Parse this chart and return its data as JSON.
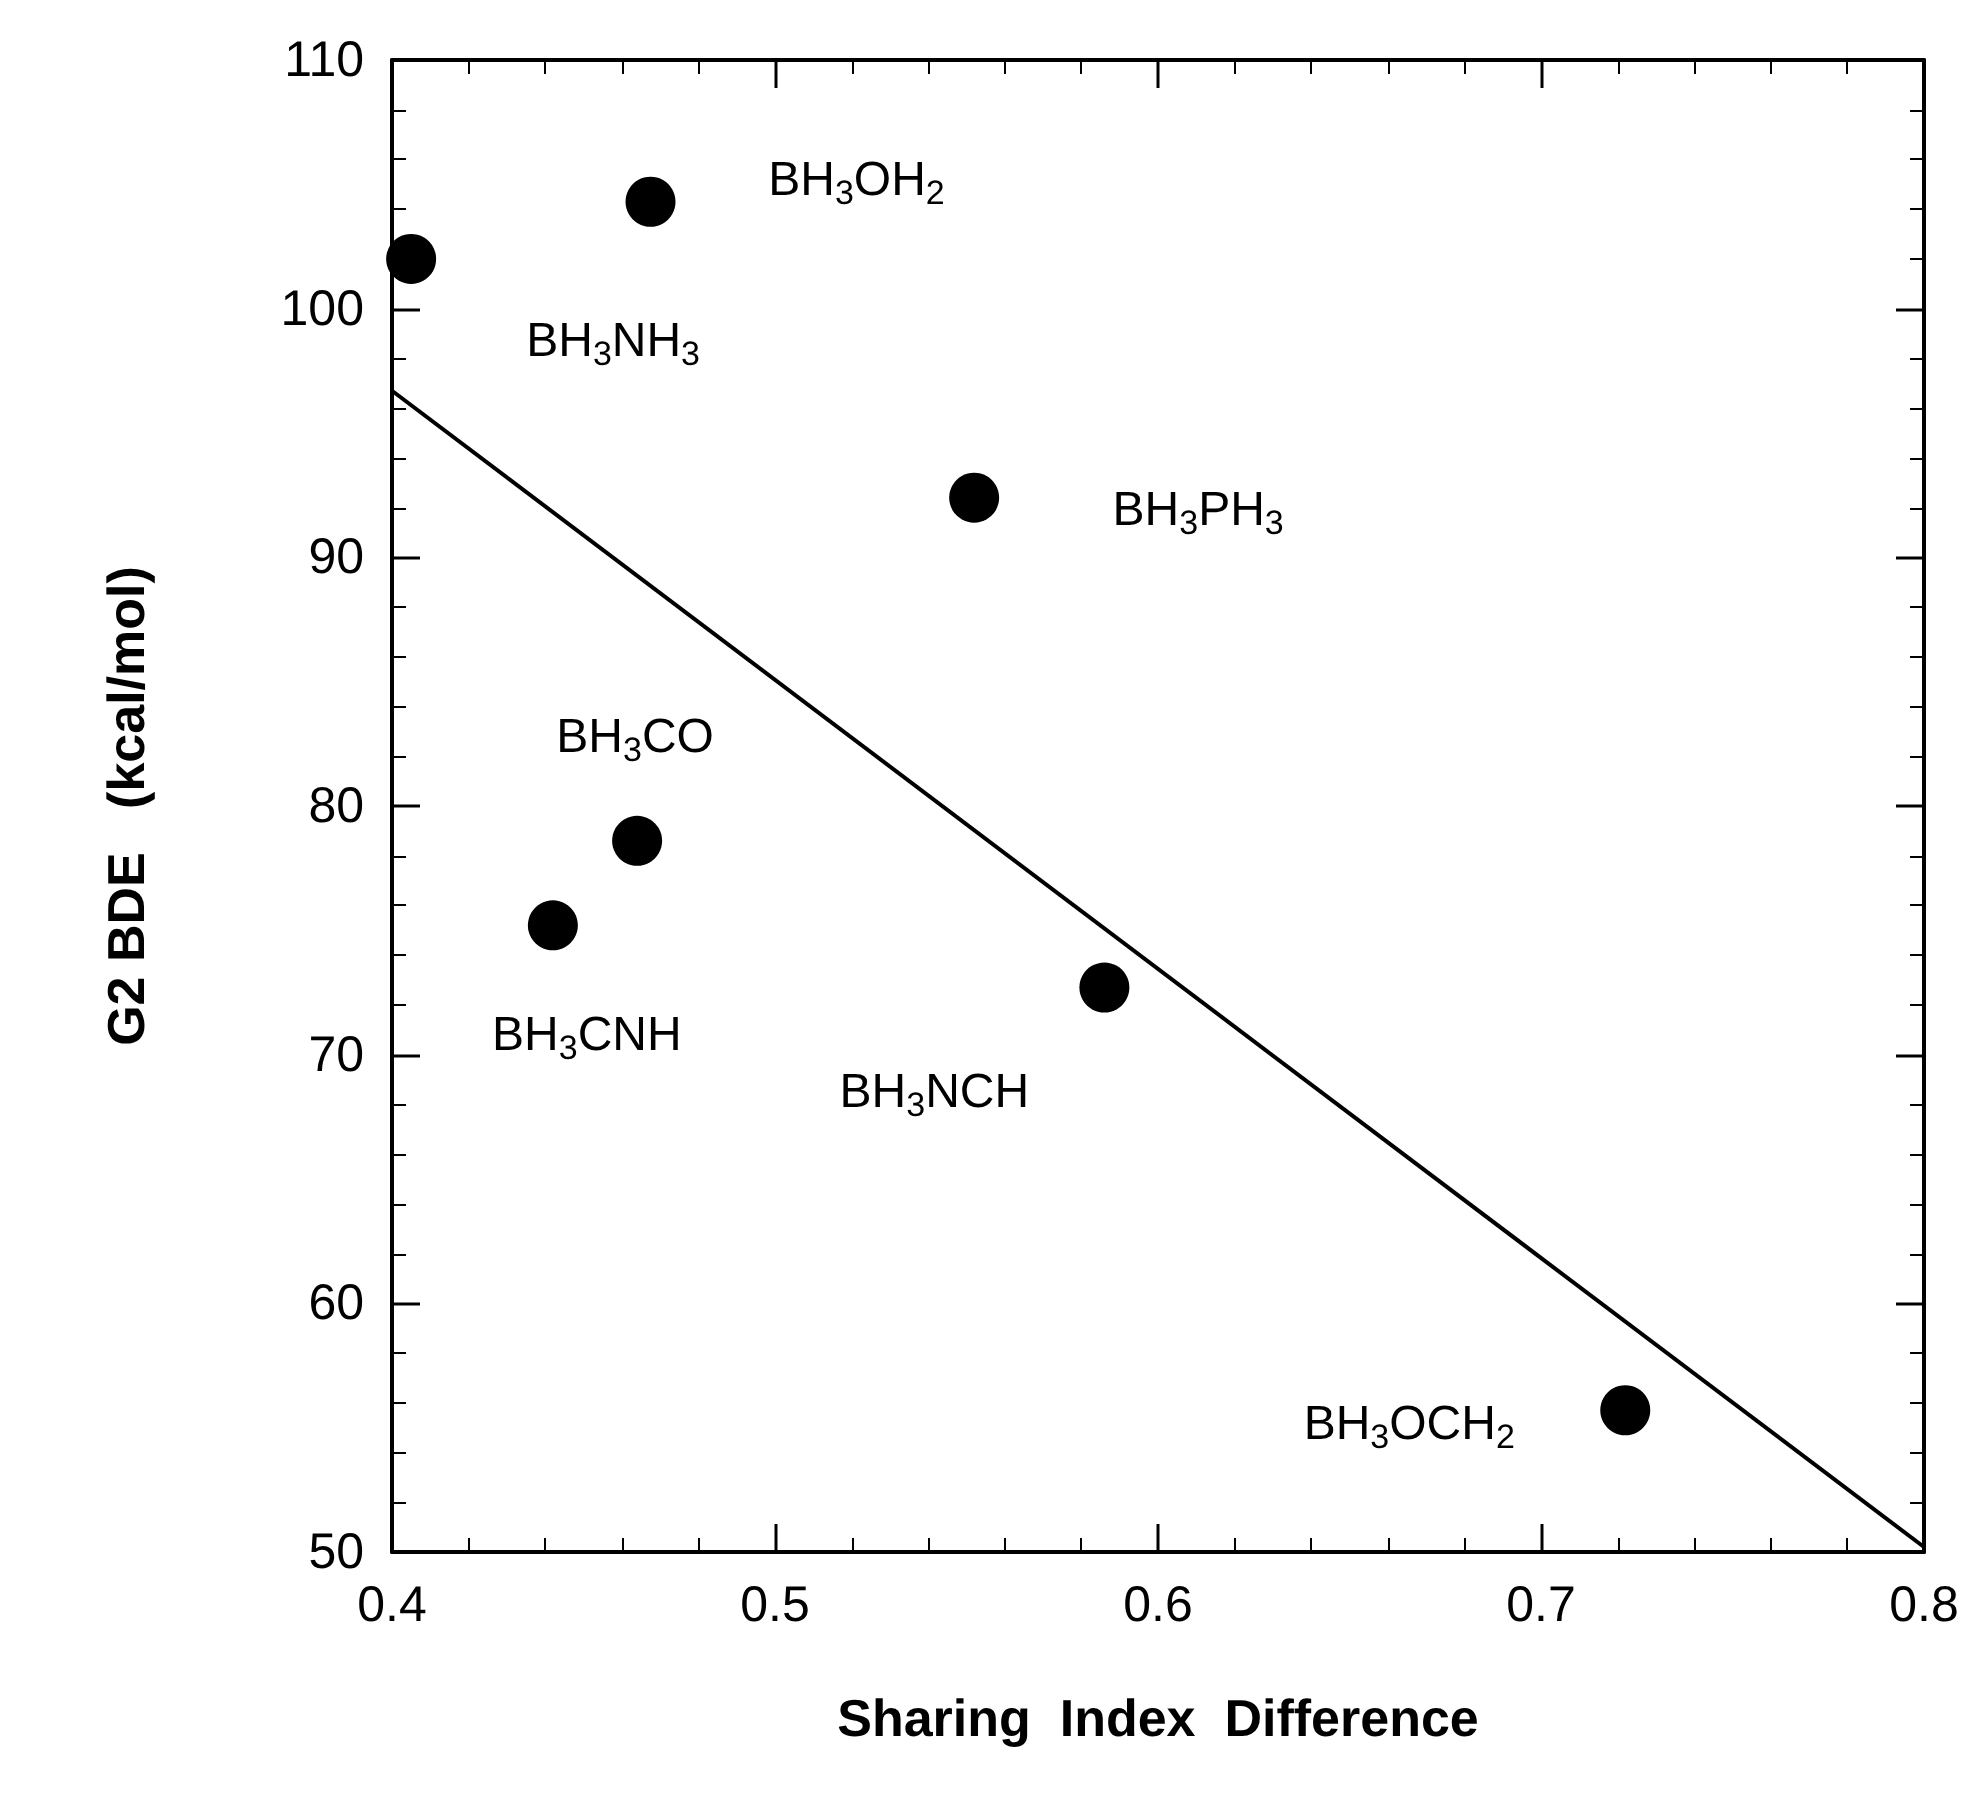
{
  "chart_data": {
    "type": "scatter",
    "xlabel": "Sharing  Index  Difference",
    "ylabel": "G2 BDE   (kcal/mol)",
    "xlim": [
      0.4,
      0.8
    ],
    "xticks": [
      0.4,
      0.5,
      0.6,
      0.7,
      0.8
    ],
    "ylim": [
      50,
      110
    ],
    "yticks": [
      50,
      60,
      70,
      80,
      90,
      100,
      110
    ],
    "grid": false,
    "marker": "circle",
    "series": [
      {
        "color": "#000000",
        "x": [
          0.405,
          0.4675,
          0.552,
          0.464,
          0.442,
          0.586,
          0.722
        ],
        "values": [
          102.0,
          104.3,
          92.4,
          78.6,
          75.2,
          72.7,
          55.7
        ]
      },
      {
        "type": "line",
        "color": "#000000",
        "line_style": "solid",
        "marker": "none",
        "x": [
          0.4,
          0.8
        ],
        "values": [
          96.7,
          50.2
        ]
      }
    ],
    "annotations": [
      {
        "text": "BH$_{3}$NH$_{3}$",
        "x": 0.405,
        "y": 102.0
      },
      {
        "text": "BH$_{3}$OH$_{2}$",
        "x": 0.4675,
        "y": 104.3
      },
      {
        "text": "BH$_{3}$PH$_{3}$",
        "x": 0.552,
        "y": 92.4
      },
      {
        "text": "BH$_{3}$CO",
        "x": 0.464,
        "y": 78.6
      },
      {
        "text": "BH$_{3}$CNH",
        "x": 0.442,
        "y": 75.2
      },
      {
        "text": "BH$_{3}$NCH",
        "x": 0.586,
        "y": 72.7
      },
      {
        "text": "BH$_{3}$OCH$_{2}$",
        "x": 0.722,
        "y": 55.7
      }
    ]
  }
}
